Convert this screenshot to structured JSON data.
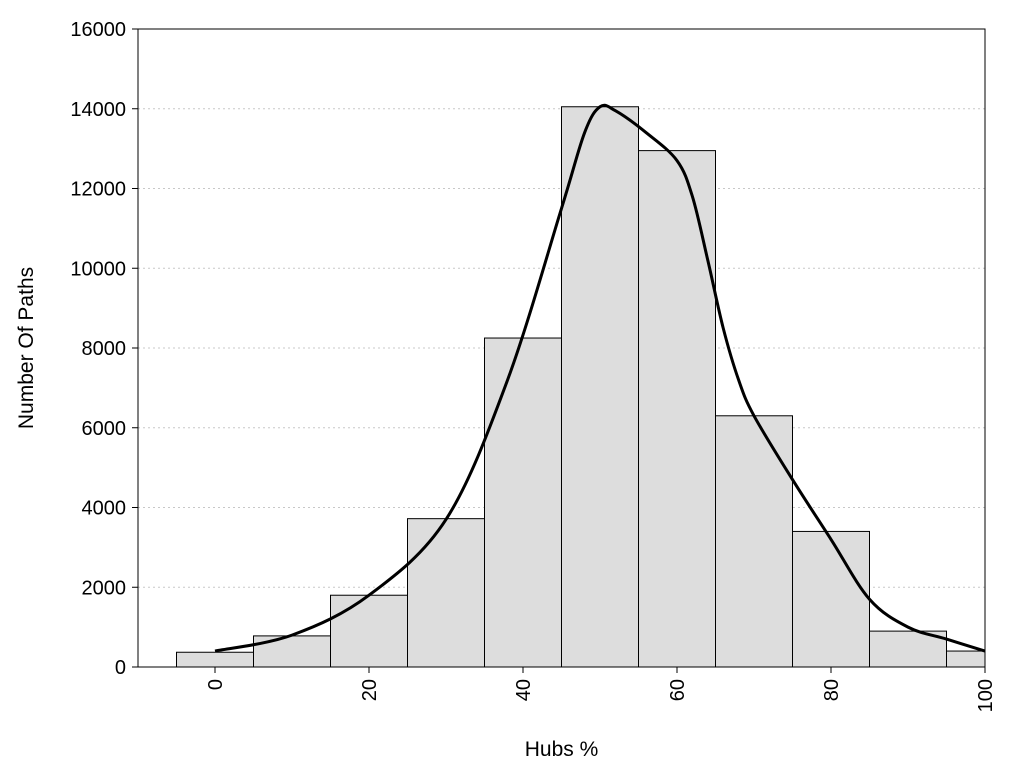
{
  "chart_data": {
    "type": "bar",
    "title": "",
    "xlabel": "Hubs %",
    "ylabel": "Number Of Paths",
    "xlim": [
      -10,
      100
    ],
    "ylim": [
      0,
      16000
    ],
    "grid": "horizontal dotted",
    "xticks": [
      0,
      20,
      40,
      60,
      80,
      100
    ],
    "yticks": [
      0,
      2000,
      4000,
      6000,
      8000,
      10000,
      12000,
      14000,
      16000
    ],
    "bin_width": 10,
    "bars": [
      {
        "x": 0,
        "value": 370
      },
      {
        "x": 10,
        "value": 780
      },
      {
        "x": 20,
        "value": 1800
      },
      {
        "x": 30,
        "value": 3720
      },
      {
        "x": 40,
        "value": 8250
      },
      {
        "x": 50,
        "value": 14050
      },
      {
        "x": 60,
        "value": 12950
      },
      {
        "x": 70,
        "value": 6300
      },
      {
        "x": 80,
        "value": 3400
      },
      {
        "x": 90,
        "value": 900
      },
      {
        "x": 100,
        "value": 400
      }
    ],
    "density_curve": {
      "x": [
        0,
        10,
        20,
        30,
        38,
        45,
        48,
        50,
        52,
        56,
        60,
        62,
        64,
        66,
        68,
        70,
        75,
        80,
        85,
        90,
        95,
        100
      ],
      "y": [
        400,
        800,
        1800,
        3700,
        7200,
        11500,
        13400,
        14050,
        13950,
        13400,
        12700,
        11800,
        10200,
        8500,
        7200,
        6300,
        4700,
        3200,
        1700,
        1000,
        700,
        400
      ]
    }
  }
}
